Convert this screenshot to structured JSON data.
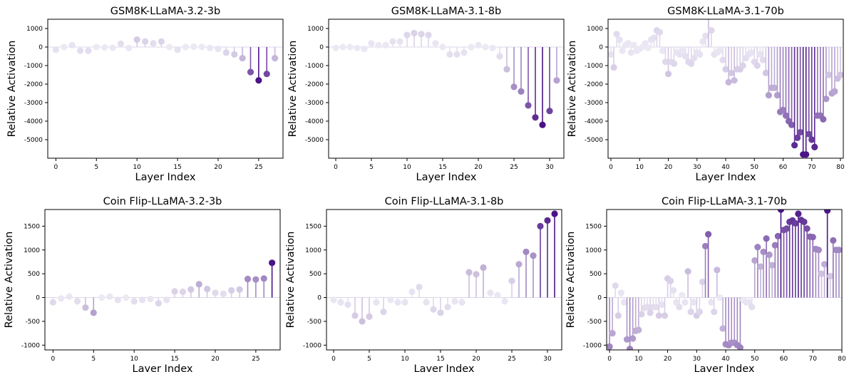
{
  "chart_data": [
    {
      "type": "stem",
      "title": "GSM8K-LLaMA-3.2-3b",
      "xlabel": "Layer Index",
      "ylabel": "Relative Activation",
      "xlim": [
        -1,
        28
      ],
      "ylim": [
        -6000,
        1500
      ],
      "xticks": [
        "0",
        "5",
        "10",
        "15",
        "20",
        "25"
      ],
      "yticks": [
        "-5000",
        "-4000",
        "-3000",
        "-2000",
        "-1000",
        "0",
        "1000"
      ],
      "x": [
        0,
        1,
        2,
        3,
        4,
        5,
        6,
        7,
        8,
        9,
        10,
        11,
        12,
        13,
        14,
        15,
        16,
        17,
        18,
        19,
        20,
        21,
        22,
        23,
        24,
        25,
        26,
        27
      ],
      "values": [
        -150,
        0,
        100,
        -200,
        -200,
        0,
        -20,
        -40,
        180,
        -50,
        400,
        300,
        200,
        300,
        0,
        -150,
        0,
        20,
        10,
        -50,
        -100,
        -300,
        -400,
        -600,
        -1350,
        -1800,
        -1450,
        -600
      ]
    },
    {
      "type": "stem",
      "title": "GSM8K-LLaMA-3.1-8b",
      "xlabel": "Layer Index",
      "ylabel": "Relative Activation",
      "xlim": [
        -1,
        32
      ],
      "ylim": [
        -6000,
        1500
      ],
      "xticks": [
        "0",
        "5",
        "10",
        "15",
        "20",
        "25",
        "30"
      ],
      "yticks": [
        "-5000",
        "-4000",
        "-3000",
        "-2000",
        "-1000",
        "0",
        "1000"
      ],
      "x": [
        0,
        1,
        2,
        3,
        4,
        5,
        6,
        7,
        8,
        9,
        10,
        11,
        12,
        13,
        14,
        15,
        16,
        17,
        18,
        19,
        20,
        21,
        22,
        23,
        24,
        25,
        26,
        27,
        28,
        29,
        30,
        31
      ],
      "values": [
        -50,
        0,
        0,
        -50,
        -100,
        200,
        100,
        100,
        300,
        300,
        650,
        750,
        700,
        650,
        200,
        0,
        -400,
        -400,
        -300,
        0,
        100,
        0,
        -50,
        -500,
        -1200,
        -2150,
        -2400,
        -3150,
        -3800,
        -4200,
        -3450,
        -1800
      ]
    },
    {
      "type": "stem",
      "title": "GSM8K-LLaMA-3.1-70b",
      "xlabel": "Layer Index",
      "ylabel": "Relative Activation",
      "xlim": [
        -1,
        81
      ],
      "ylim": [
        -6000,
        1500
      ],
      "xticks": [
        "0",
        "10",
        "20",
        "30",
        "40",
        "50",
        "60",
        "70",
        "80"
      ],
      "yticks": [
        "-5000",
        "-4000",
        "-3000",
        "-2000",
        "-1000",
        "0",
        "1000"
      ],
      "x": [
        0,
        1,
        2,
        3,
        4,
        5,
        6,
        7,
        8,
        9,
        10,
        11,
        12,
        13,
        14,
        15,
        16,
        17,
        18,
        19,
        20,
        21,
        22,
        23,
        24,
        25,
        26,
        27,
        28,
        29,
        30,
        31,
        32,
        33,
        34,
        35,
        36,
        37,
        38,
        39,
        40,
        41,
        42,
        43,
        44,
        45,
        46,
        47,
        48,
        49,
        50,
        51,
        52,
        53,
        54,
        55,
        56,
        57,
        58,
        59,
        60,
        61,
        62,
        63,
        64,
        65,
        66,
        67,
        68,
        69,
        70,
        71,
        72,
        73,
        74,
        75,
        76,
        77,
        78,
        79,
        80
      ],
      "values": [
        -400,
        -1100,
        700,
        400,
        -200,
        100,
        200,
        -300,
        100,
        -200,
        -100,
        0,
        200,
        -50,
        400,
        500,
        900,
        800,
        -200,
        -800,
        -1450,
        -800,
        -900,
        -300,
        -400,
        -200,
        -500,
        -800,
        -900,
        -600,
        -300,
        -400,
        300,
        600,
        1800,
        900,
        -400,
        -300,
        -200,
        -700,
        -1200,
        -1900,
        -1400,
        -1800,
        -1200,
        -1200,
        -1000,
        -600,
        -400,
        -300,
        -800,
        -1000,
        -400,
        -700,
        -1400,
        -2600,
        -2200,
        -2200,
        -2600,
        -3500,
        -3400,
        -3700,
        -4000,
        -4200,
        -5300,
        -4900,
        -4600,
        -5800,
        -5800,
        -4700,
        -5000,
        -5400,
        -3700,
        -3700,
        -3900,
        -2800,
        -1500,
        -2500,
        -2400,
        -1700,
        -1500
      ]
    },
    {
      "type": "stem",
      "title": "Coin Flip-LLaMA-3.2-3b",
      "xlabel": "Layer Index",
      "ylabel": "Relative Activation",
      "xlim": [
        -1,
        28
      ],
      "ylim": [
        -1100,
        1850
      ],
      "xticks": [
        "0",
        "5",
        "10",
        "15",
        "20",
        "25"
      ],
      "yticks": [
        "-1000",
        "-500",
        "0",
        "500",
        "1000",
        "1500"
      ],
      "x": [
        0,
        1,
        2,
        3,
        4,
        5,
        6,
        7,
        8,
        9,
        10,
        11,
        12,
        13,
        14,
        15,
        16,
        17,
        18,
        19,
        20,
        21,
        22,
        23,
        24,
        25,
        26,
        27
      ],
      "values": [
        -100,
        -20,
        20,
        -80,
        -210,
        -320,
        0,
        20,
        -50,
        0,
        -80,
        -50,
        -30,
        -120,
        -50,
        130,
        120,
        170,
        280,
        180,
        100,
        80,
        150,
        170,
        390,
        380,
        400,
        730
      ]
    },
    {
      "type": "stem",
      "title": "Coin Flip-LLaMA-3.1-8b",
      "xlabel": "Layer Index",
      "ylabel": "Relative Activation",
      "xlim": [
        -1,
        32
      ],
      "ylim": [
        -1100,
        1850
      ],
      "xticks": [
        "0",
        "5",
        "10",
        "15",
        "20",
        "25",
        "30"
      ],
      "yticks": [
        "-1000",
        "-500",
        "0",
        "500",
        "1000",
        "1500"
      ],
      "x": [
        0,
        1,
        2,
        3,
        4,
        5,
        6,
        7,
        8,
        9,
        10,
        11,
        12,
        13,
        14,
        15,
        16,
        17,
        18,
        19,
        20,
        21,
        22,
        23,
        24,
        25,
        26,
        27,
        28,
        29,
        30,
        31
      ],
      "values": [
        -50,
        -100,
        -150,
        -380,
        -500,
        -400,
        -100,
        -300,
        -50,
        -100,
        -100,
        120,
        220,
        -100,
        -250,
        -320,
        -200,
        -80,
        -100,
        530,
        490,
        630,
        100,
        50,
        -80,
        350,
        700,
        960,
        880,
        1500,
        1620,
        1760
      ]
    },
    {
      "type": "stem",
      "title": "Coin Flip-LLaMA-3.1-70b",
      "xlabel": "Layer Index",
      "ylabel": "Relative Activation",
      "xlim": [
        -1,
        80
      ],
      "ylim": [
        -1100,
        1850
      ],
      "xticks": [
        "0",
        "10",
        "20",
        "30",
        "40",
        "50",
        "60",
        "70",
        "80"
      ],
      "yticks": [
        "-1000",
        "-500",
        "0",
        "500",
        "1000",
        "1500"
      ],
      "x": [
        0,
        1,
        2,
        3,
        4,
        5,
        6,
        7,
        8,
        9,
        10,
        11,
        12,
        13,
        14,
        15,
        16,
        17,
        18,
        19,
        20,
        21,
        22,
        23,
        24,
        25,
        26,
        27,
        28,
        29,
        30,
        31,
        32,
        33,
        34,
        35,
        36,
        37,
        38,
        39,
        40,
        41,
        42,
        43,
        44,
        45,
        46,
        47,
        48,
        49,
        50,
        51,
        52,
        53,
        54,
        55,
        56,
        57,
        58,
        59,
        60,
        61,
        62,
        63,
        64,
        65,
        66,
        67,
        68,
        69,
        70,
        71,
        72,
        73,
        74,
        75,
        76,
        77,
        78,
        79
      ],
      "values": [
        -1030,
        -750,
        250,
        -380,
        100,
        -100,
        -880,
        -1080,
        -860,
        -700,
        -680,
        -350,
        -220,
        -200,
        -320,
        -200,
        -200,
        -380,
        -150,
        -380,
        400,
        350,
        150,
        -100,
        -200,
        50,
        -100,
        550,
        -300,
        -100,
        -380,
        -300,
        330,
        1080,
        1330,
        -100,
        -300,
        580,
        0,
        -650,
        -980,
        -1000,
        -950,
        -950,
        -1000,
        -1050,
        -50,
        -100,
        -100,
        -200,
        780,
        1060,
        650,
        960,
        1240,
        900,
        680,
        1100,
        1290,
        1850,
        1420,
        1450,
        1590,
        1620,
        1560,
        1760,
        1630,
        1590,
        1450,
        1280,
        1270,
        1020,
        1000,
        500,
        700,
        1830,
        450,
        1200,
        1000,
        1000
      ]
    }
  ]
}
